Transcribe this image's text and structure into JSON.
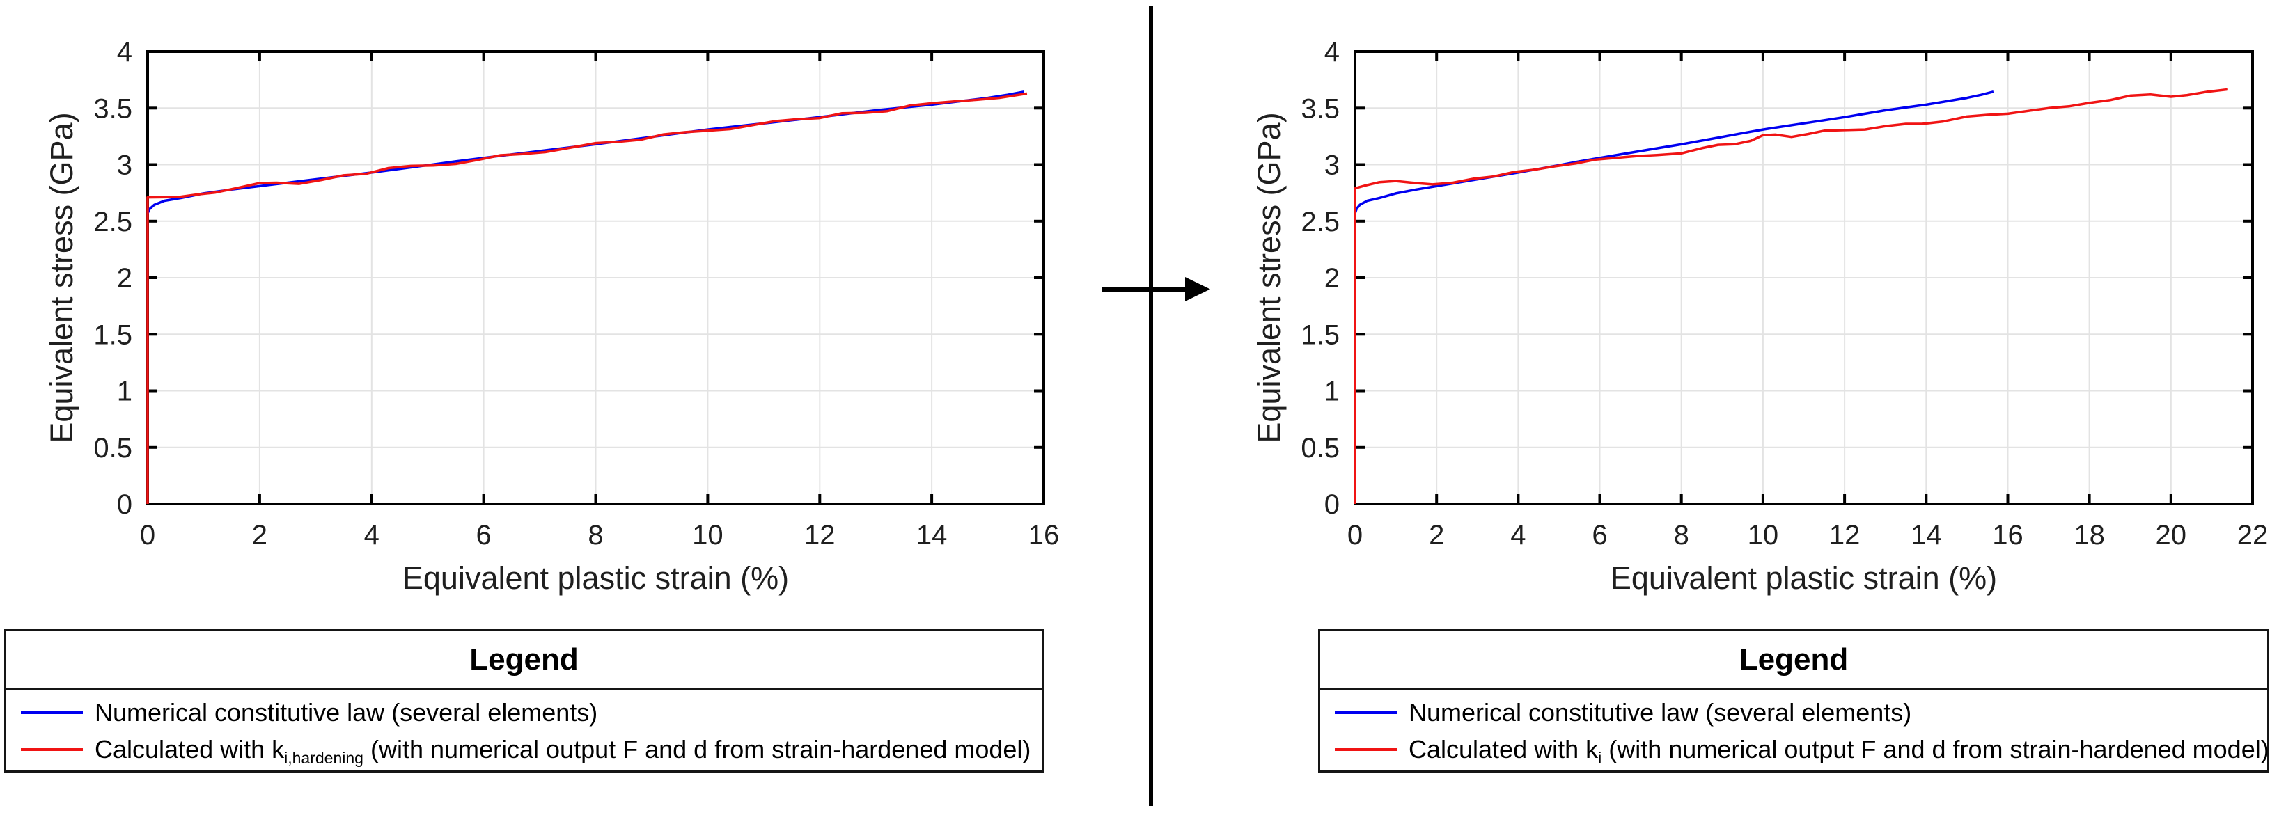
{
  "colors": {
    "blue": "#0000F0",
    "red": "#F01414",
    "grid": "#E3E3E3",
    "axis": "#000000",
    "text": "#1F1F1F"
  },
  "divider": {
    "arrow_direction": "right"
  },
  "chart_data": [
    {
      "type": "line",
      "title": "",
      "xlabel": "Equivalent plastic strain (%)",
      "ylabel": "Equivalent stress (GPa)",
      "xlim": [
        0,
        16
      ],
      "ylim": [
        0,
        4
      ],
      "xtick_step": 2,
      "ytick_step": 0.5,
      "grid": true,
      "legend_position": "below-in-separate-box",
      "series": [
        {
          "name": "Numerical constitutive law (several elements)",
          "color_key": "blue",
          "points": [
            [
              0,
              2.57
            ],
            [
              0.04,
              2.61
            ],
            [
              0.12,
              2.645
            ],
            [
              0.3,
              2.68
            ],
            [
              0.6,
              2.705
            ],
            [
              1,
              2.745
            ],
            [
              1.5,
              2.78
            ],
            [
              2,
              2.81
            ],
            [
              2.5,
              2.84
            ],
            [
              3,
              2.87
            ],
            [
              3.5,
              2.9
            ],
            [
              4,
              2.93
            ],
            [
              4.5,
              2.962
            ],
            [
              5,
              2.995
            ],
            [
              5.5,
              3.028
            ],
            [
              6,
              3.06
            ],
            [
              6.5,
              3.09
            ],
            [
              7,
              3.12
            ],
            [
              7.5,
              3.15
            ],
            [
              8,
              3.18
            ],
            [
              8.5,
              3.212
            ],
            [
              9,
              3.245
            ],
            [
              9.5,
              3.278
            ],
            [
              10,
              3.31
            ],
            [
              10.5,
              3.338
            ],
            [
              11,
              3.365
            ],
            [
              11.5,
              3.392
            ],
            [
              12,
              3.42
            ],
            [
              12.5,
              3.45
            ],
            [
              13,
              3.48
            ],
            [
              13.5,
              3.505
            ],
            [
              14,
              3.53
            ],
            [
              14.5,
              3.56
            ],
            [
              15,
              3.59
            ],
            [
              15.35,
              3.617
            ],
            [
              15.65,
              3.645
            ]
          ]
        },
        {
          "name": "Calculated with k_i,hardening (with numerical output F and d from strain-hardened model)",
          "color_key": "red",
          "points": [
            [
              0,
              0
            ],
            [
              0,
              2.71
            ],
            [
              0.55,
              2.713
            ],
            [
              0.9,
              2.737
            ],
            [
              1.2,
              2.752
            ],
            [
              1.6,
              2.793
            ],
            [
              2,
              2.837
            ],
            [
              2.3,
              2.84
            ],
            [
              2.7,
              2.83
            ],
            [
              3.1,
              2.864
            ],
            [
              3.5,
              2.905
            ],
            [
              3.9,
              2.919
            ],
            [
              4.3,
              2.969
            ],
            [
              4.7,
              2.988
            ],
            [
              5.1,
              2.992
            ],
            [
              5.5,
              3.006
            ],
            [
              5.9,
              3.042
            ],
            [
              6.3,
              3.083
            ],
            [
              6.7,
              3.094
            ],
            [
              7.1,
              3.111
            ],
            [
              7.5,
              3.145
            ],
            [
              8,
              3.19
            ],
            [
              8.4,
              3.201
            ],
            [
              8.8,
              3.22
            ],
            [
              9.2,
              3.266
            ],
            [
              9.6,
              3.287
            ],
            [
              10,
              3.3
            ],
            [
              10.4,
              3.314
            ],
            [
              10.8,
              3.349
            ],
            [
              11.2,
              3.384
            ],
            [
              11.6,
              3.401
            ],
            [
              12,
              3.412
            ],
            [
              12.4,
              3.454
            ],
            [
              12.8,
              3.458
            ],
            [
              13.2,
              3.472
            ],
            [
              13.6,
              3.521
            ],
            [
              14,
              3.542
            ],
            [
              14.4,
              3.559
            ],
            [
              14.8,
              3.573
            ],
            [
              15.2,
              3.59
            ],
            [
              15.7,
              3.628
            ]
          ]
        }
      ]
    },
    {
      "type": "line",
      "title": "",
      "xlabel": "Equivalent plastic strain (%)",
      "ylabel": "Equivalent stress (GPa)",
      "xlim": [
        0,
        22
      ],
      "ylim": [
        0,
        4
      ],
      "xtick_step": 2,
      "ytick_step": 0.5,
      "grid": true,
      "legend_position": "below-in-separate-box",
      "series": [
        {
          "name": "Numerical constitutive law (several elements)",
          "color_key": "blue",
          "points": [
            [
              0,
              2.57
            ],
            [
              0.04,
              2.61
            ],
            [
              0.12,
              2.645
            ],
            [
              0.3,
              2.68
            ],
            [
              0.6,
              2.705
            ],
            [
              1,
              2.745
            ],
            [
              1.5,
              2.78
            ],
            [
              2,
              2.81
            ],
            [
              2.5,
              2.84
            ],
            [
              3,
              2.87
            ],
            [
              3.5,
              2.9
            ],
            [
              4,
              2.93
            ],
            [
              4.5,
              2.962
            ],
            [
              5,
              2.995
            ],
            [
              5.5,
              3.028
            ],
            [
              6,
              3.06
            ],
            [
              6.5,
              3.09
            ],
            [
              7,
              3.12
            ],
            [
              7.5,
              3.15
            ],
            [
              8,
              3.18
            ],
            [
              8.5,
              3.212
            ],
            [
              9,
              3.245
            ],
            [
              9.5,
              3.278
            ],
            [
              10,
              3.31
            ],
            [
              10.5,
              3.338
            ],
            [
              11,
              3.365
            ],
            [
              11.5,
              3.392
            ],
            [
              12,
              3.42
            ],
            [
              12.5,
              3.45
            ],
            [
              13,
              3.48
            ],
            [
              13.5,
              3.505
            ],
            [
              14,
              3.53
            ],
            [
              14.5,
              3.56
            ],
            [
              15,
              3.59
            ],
            [
              15.35,
              3.617
            ],
            [
              15.65,
              3.645
            ]
          ]
        },
        {
          "name": "Calculated with k_i (with numerical output F and d from strain-hardened model)",
          "color_key": "red",
          "points": [
            [
              0,
              0
            ],
            [
              0,
              2.79
            ],
            [
              0.25,
              2.815
            ],
            [
              0.6,
              2.845
            ],
            [
              1,
              2.855
            ],
            [
              1.4,
              2.84
            ],
            [
              1.9,
              2.825
            ],
            [
              2.4,
              2.84
            ],
            [
              2.9,
              2.875
            ],
            [
              3.4,
              2.895
            ],
            [
              3.9,
              2.935
            ],
            [
              4.4,
              2.955
            ],
            [
              4.9,
              2.985
            ],
            [
              5.4,
              3.01
            ],
            [
              5.9,
              3.045
            ],
            [
              6.4,
              3.06
            ],
            [
              6.9,
              3.075
            ],
            [
              7.4,
              3.085
            ],
            [
              8,
              3.1
            ],
            [
              8.5,
              3.145
            ],
            [
              8.9,
              3.175
            ],
            [
              9.3,
              3.18
            ],
            [
              9.7,
              3.21
            ],
            [
              10,
              3.26
            ],
            [
              10.3,
              3.265
            ],
            [
              10.7,
              3.245
            ],
            [
              11.1,
              3.27
            ],
            [
              11.5,
              3.3
            ],
            [
              12,
              3.305
            ],
            [
              12.5,
              3.31
            ],
            [
              13,
              3.34
            ],
            [
              13.5,
              3.36
            ],
            [
              13.9,
              3.36
            ],
            [
              14.4,
              3.38
            ],
            [
              15,
              3.425
            ],
            [
              15.5,
              3.44
            ],
            [
              16,
              3.45
            ],
            [
              16.5,
              3.475
            ],
            [
              17,
              3.5
            ],
            [
              17.5,
              3.515
            ],
            [
              18,
              3.545
            ],
            [
              18.5,
              3.57
            ],
            [
              19,
              3.61
            ],
            [
              19.5,
              3.62
            ],
            [
              20,
              3.6
            ],
            [
              20.4,
              3.615
            ],
            [
              20.9,
              3.645
            ],
            [
              21.4,
              3.665
            ]
          ]
        }
      ]
    }
  ],
  "legend_left": {
    "title": "Legend",
    "entries": [
      {
        "label": "Numerical constitutive law (several elements)"
      },
      {
        "prefix": "Calculated with k",
        "subscript": "i,hardening",
        "suffix": " (with numerical output F and d from strain-hardened model)"
      }
    ]
  },
  "legend_right": {
    "title": "Legend",
    "entries": [
      {
        "label": "Numerical constitutive law (several elements)"
      },
      {
        "prefix": "Calculated with k",
        "subscript": "i",
        "suffix": " (with numerical output F and d from strain-hardened model)"
      }
    ]
  }
}
